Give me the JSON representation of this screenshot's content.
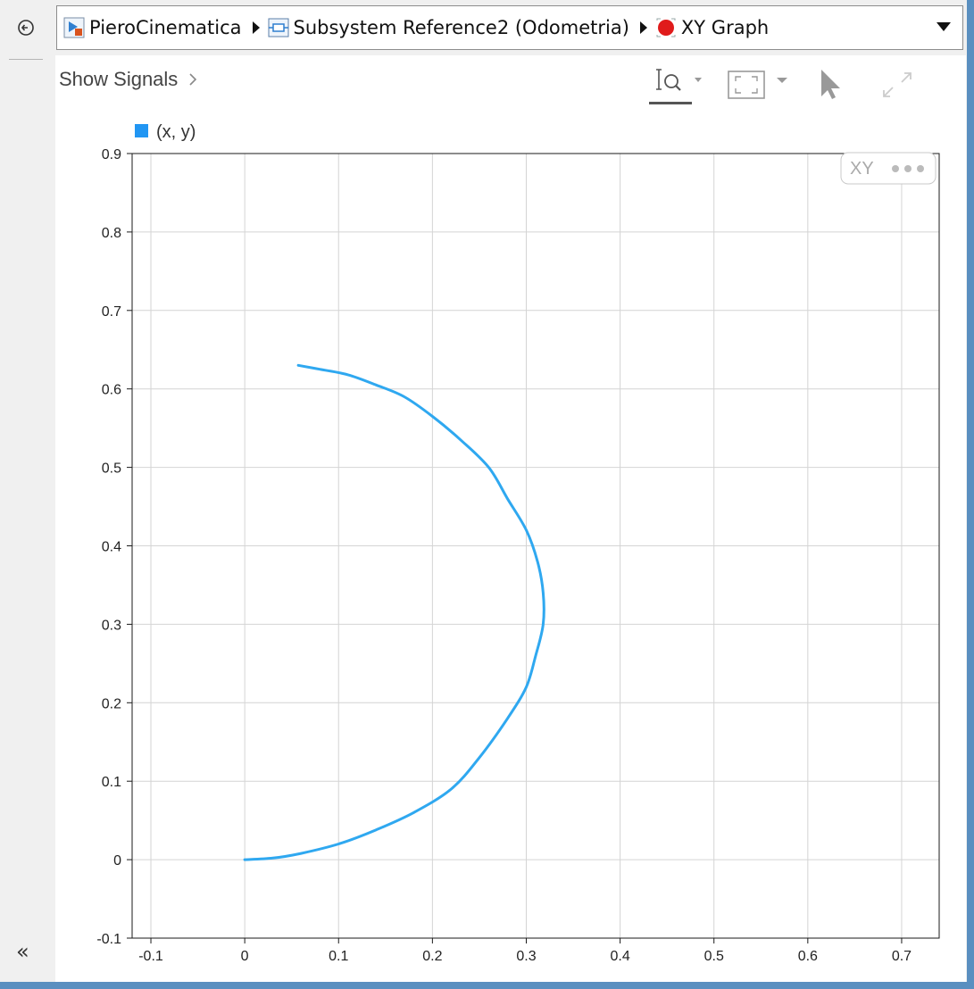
{
  "breadcrumb": {
    "items": [
      {
        "label": "PieroCinematica",
        "icon": "simulink-model-icon"
      },
      {
        "label": "Subsystem Reference2 (Odometria)",
        "icon": "subsystem-reference-icon"
      },
      {
        "label": "XY Graph",
        "icon": "xy-graph-block-icon"
      }
    ],
    "separator_icon": "breadcrumb-arrow-icon",
    "dropdown_icon": "dropdown-arrow-icon"
  },
  "toolbar": {
    "show_signals_label": "Show Signals",
    "show_signals_icon": "chevron-right-icon",
    "zoom_icon": "zoom-in-icon",
    "fit_icon": "fit-to-view-icon",
    "select_icon": "cursor-arrow-icon",
    "expand_icon": "expand-icon",
    "back_icon": "back-arrow-icon",
    "collapse_icon": "double-chevron-left-icon",
    "collapse_glyph": "«"
  },
  "plot_badge": {
    "label": "XY",
    "more_icon": "ellipsis-icon"
  },
  "chart_data": {
    "type": "line",
    "title": "",
    "xlabel": "",
    "ylabel": "",
    "xlim": [
      -0.12,
      0.74
    ],
    "ylim": [
      -0.1,
      0.9
    ],
    "x_ticks": [
      -0.1,
      0,
      0.1,
      0.2,
      0.3,
      0.4,
      0.5,
      0.6,
      0.7
    ],
    "x_tick_labels": [
      "-0.1",
      "0",
      "0.1",
      "0.2",
      "0.3",
      "0.4",
      "0.5",
      "0.6",
      "0.7"
    ],
    "y_ticks": [
      -0.1,
      0,
      0.1,
      0.2,
      0.3,
      0.4,
      0.5,
      0.6,
      0.7,
      0.8,
      0.9
    ],
    "y_tick_labels": [
      "-0.1",
      "0",
      "0.1",
      "0.2",
      "0.3",
      "0.4",
      "0.5",
      "0.6",
      "0.7",
      "0.8",
      "0.9"
    ],
    "grid": true,
    "legend_position": "top-left",
    "series": [
      {
        "name": "(x, y)",
        "color": "#2fa8f0",
        "x": [
          0.0,
          0.03,
          0.06,
          0.1,
          0.14,
          0.18,
          0.22,
          0.25,
          0.28,
          0.3,
          0.31,
          0.318,
          0.318,
          0.312,
          0.3,
          0.28,
          0.26,
          0.23,
          0.2,
          0.17,
          0.14,
          0.11,
          0.08,
          0.057
        ],
        "y": [
          0.0,
          0.002,
          0.008,
          0.02,
          0.038,
          0.06,
          0.09,
          0.13,
          0.18,
          0.22,
          0.26,
          0.3,
          0.34,
          0.38,
          0.42,
          0.46,
          0.5,
          0.535,
          0.565,
          0.59,
          0.605,
          0.618,
          0.625,
          0.63
        ]
      }
    ]
  }
}
